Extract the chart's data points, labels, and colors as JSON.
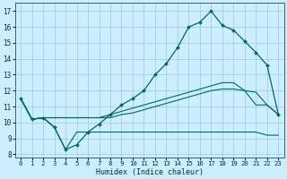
{
  "xlabel": "Humidex (Indice chaleur)",
  "bg_color": "#cceeff",
  "grid_color": "#99cccc",
  "line_color": "#006666",
  "xlim": [
    -0.5,
    23.5
  ],
  "ylim": [
    7.8,
    17.5
  ],
  "xticks": [
    0,
    1,
    2,
    3,
    4,
    5,
    6,
    7,
    8,
    9,
    10,
    11,
    12,
    13,
    14,
    15,
    16,
    17,
    18,
    19,
    20,
    21,
    22,
    23
  ],
  "yticks": [
    8,
    9,
    10,
    11,
    12,
    13,
    14,
    15,
    16,
    17
  ],
  "s1_x": [
    0,
    1,
    2,
    3,
    4,
    5,
    6,
    7,
    8,
    9,
    10,
    11,
    12,
    13,
    14,
    15,
    16,
    17,
    18,
    19,
    20,
    21,
    22,
    23
  ],
  "s1_y": [
    11.5,
    10.2,
    10.3,
    9.7,
    8.3,
    8.6,
    9.4,
    9.9,
    10.5,
    11.1,
    11.5,
    12.0,
    13.0,
    13.7,
    14.7,
    16.0,
    16.3,
    17.0,
    16.1,
    15.8,
    15.1,
    14.4,
    13.6,
    10.5
  ],
  "s2_x": [
    0,
    1,
    2,
    3,
    4,
    5,
    6,
    7,
    8,
    9,
    10,
    11,
    12,
    13,
    14,
    15,
    16,
    17,
    18,
    19,
    20,
    21,
    22,
    23
  ],
  "s2_y": [
    11.5,
    10.2,
    10.3,
    9.7,
    8.3,
    9.4,
    9.4,
    9.4,
    9.4,
    9.4,
    9.4,
    9.4,
    9.4,
    9.4,
    9.4,
    9.4,
    9.4,
    9.4,
    9.4,
    9.4,
    9.4,
    9.4,
    9.2,
    9.2
  ],
  "s3_x": [
    0,
    1,
    2,
    3,
    4,
    5,
    6,
    7,
    8,
    9,
    10,
    11,
    12,
    13,
    14,
    15,
    16,
    17,
    18,
    19,
    20,
    21,
    22,
    23
  ],
  "s3_y": [
    11.5,
    10.2,
    10.3,
    10.3,
    10.3,
    10.3,
    10.3,
    10.3,
    10.3,
    10.5,
    10.6,
    10.8,
    11.0,
    11.2,
    11.4,
    11.6,
    11.8,
    12.0,
    12.1,
    12.1,
    12.0,
    11.1,
    11.1,
    10.5
  ],
  "s4_x": [
    0,
    1,
    2,
    3,
    4,
    5,
    6,
    7,
    8,
    9,
    10,
    11,
    12,
    13,
    14,
    15,
    16,
    17,
    18,
    19,
    20,
    21,
    22,
    23
  ],
  "s4_y": [
    11.5,
    10.2,
    10.3,
    10.3,
    10.3,
    10.3,
    10.3,
    10.3,
    10.5,
    10.7,
    10.9,
    11.1,
    11.3,
    11.5,
    11.7,
    11.9,
    12.1,
    12.3,
    12.5,
    12.5,
    12.0,
    11.9,
    11.1,
    10.5
  ]
}
